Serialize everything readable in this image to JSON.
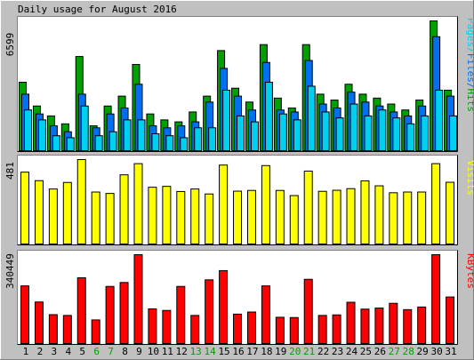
{
  "title": "Daily usage for August 2016",
  "colors": {
    "background": "#c0c0c0",
    "panel": "#ffffff",
    "hits": "#00a000",
    "files": "#0070f0",
    "pages": "#00d0f0",
    "visits": "#ffff00",
    "kbytes": "#ff0000",
    "weekend_day": "#00a000",
    "weekday_day": "#000000"
  },
  "chart_data": [
    {
      "type": "bar",
      "title": "Daily usage for August 2016",
      "xlabel": "",
      "ylabel": "Pages/Files/Hits",
      "y_axis_max_label": "6599",
      "ylim": [
        0,
        6599
      ],
      "categories": [
        "1",
        "2",
        "3",
        "4",
        "5",
        "6",
        "7",
        "8",
        "9",
        "10",
        "11",
        "12",
        "13",
        "14",
        "15",
        "16",
        "17",
        "18",
        "19",
        "20",
        "21",
        "22",
        "23",
        "24",
        "25",
        "26",
        "27",
        "28",
        "29",
        "30",
        "31"
      ],
      "weekend_days": [
        "6",
        "7",
        "13",
        "14",
        "20",
        "21",
        "27",
        "28"
      ],
      "series": [
        {
          "name": "Hits",
          "values": [
            3500,
            2300,
            1800,
            1400,
            4800,
            1300,
            2300,
            2800,
            4400,
            1900,
            1600,
            1500,
            2000,
            2800,
            5100,
            3200,
            2500,
            5400,
            2700,
            2200,
            5400,
            2900,
            2600,
            3400,
            2900,
            2700,
            2400,
            2100,
            2600,
            6599,
            3100
          ]
        },
        {
          "name": "Files",
          "values": [
            2900,
            1900,
            1300,
            1000,
            2900,
            1200,
            1900,
            2200,
            3400,
            1300,
            1200,
            1300,
            1500,
            2500,
            4200,
            2800,
            2100,
            4500,
            2100,
            2000,
            4600,
            2400,
            2200,
            3000,
            2500,
            2300,
            2000,
            1800,
            2300,
            5800,
            2800
          ]
        },
        {
          "name": "Pages",
          "values": [
            2100,
            1600,
            800,
            700,
            2300,
            800,
            1000,
            1600,
            1600,
            900,
            800,
            700,
            1200,
            1200,
            3100,
            1800,
            1500,
            3500,
            1900,
            1600,
            3300,
            2000,
            1700,
            2400,
            1800,
            2100,
            1700,
            1400,
            1800,
            3100,
            1800
          ]
        }
      ]
    },
    {
      "type": "bar",
      "ylabel": "Visits",
      "y_axis_max_label": "481",
      "ylim": [
        0,
        481
      ],
      "categories": [
        "1",
        "2",
        "3",
        "4",
        "5",
        "6",
        "7",
        "8",
        "9",
        "10",
        "11",
        "12",
        "13",
        "14",
        "15",
        "16",
        "17",
        "18",
        "19",
        "20",
        "21",
        "22",
        "23",
        "24",
        "25",
        "26",
        "27",
        "28",
        "29",
        "30",
        "31"
      ],
      "series": [
        {
          "name": "Visits",
          "values": [
            410,
            362,
            315,
            352,
            481,
            298,
            290,
            395,
            458,
            325,
            330,
            301,
            315,
            287,
            450,
            303,
            307,
            447,
            307,
            278,
            416,
            302,
            308,
            317,
            361,
            333,
            294,
            298,
            298,
            458,
            353
          ]
        }
      ]
    },
    {
      "type": "bar",
      "ylabel": "KBytes",
      "y_axis_max_label": "340449",
      "ylim": [
        0,
        340449
      ],
      "categories": [
        "1",
        "2",
        "3",
        "4",
        "5",
        "6",
        "7",
        "8",
        "9",
        "10",
        "11",
        "12",
        "13",
        "14",
        "15",
        "16",
        "17",
        "18",
        "19",
        "20",
        "21",
        "22",
        "23",
        "24",
        "25",
        "26",
        "27",
        "28",
        "29",
        "30",
        "31"
      ],
      "series": [
        {
          "name": "KBytes",
          "values": [
            222000,
            161000,
            113000,
            110000,
            253000,
            93000,
            220000,
            235000,
            340449,
            135000,
            129000,
            220000,
            110000,
            245000,
            280000,
            115000,
            123000,
            222000,
            103000,
            102000,
            247000,
            110000,
            112000,
            160000,
            134000,
            138000,
            156000,
            132000,
            142000,
            340449,
            180000
          ]
        }
      ]
    }
  ]
}
